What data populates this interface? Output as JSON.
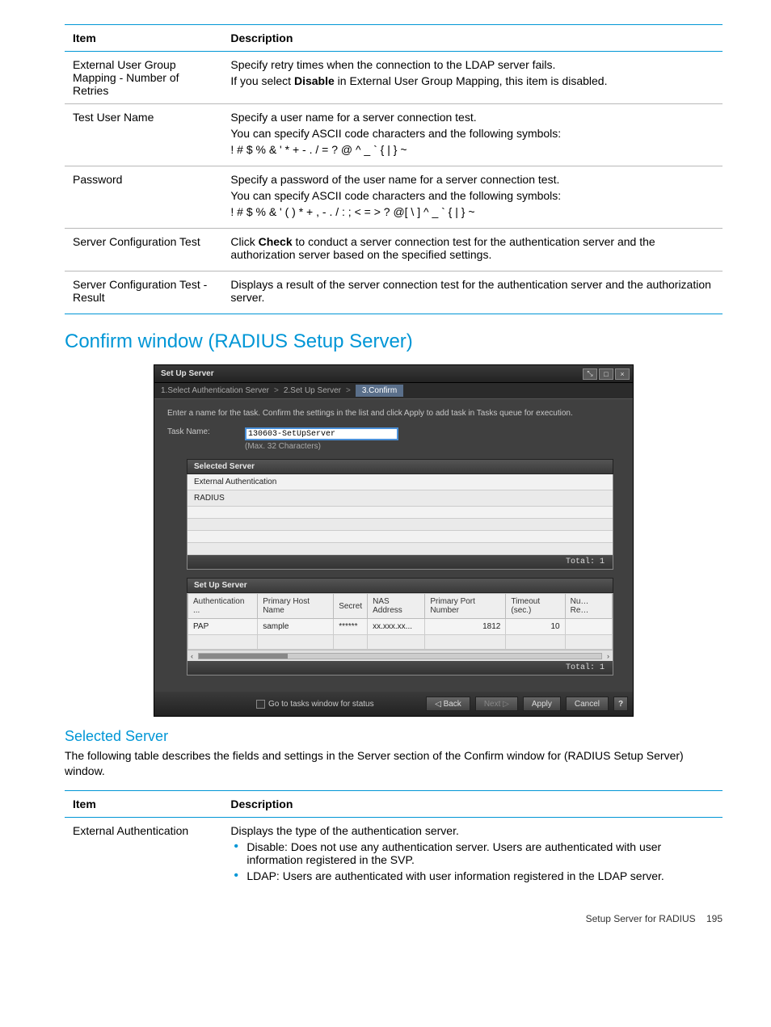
{
  "colors": {
    "accent": "#0096d6",
    "rule": "#b8b8b8",
    "dialog_bg": "#404040",
    "dialog_title_bg_top": "#3a3a3a",
    "dialog_title_bg_bottom": "#222222",
    "input_focus": "#4a90d9"
  },
  "table1": {
    "head_item": "Item",
    "head_desc": "Description",
    "rows": [
      {
        "item": "External User Group Mapping - Number of Retries",
        "desc_lines": [
          "Specify retry times when the connection to the LDAP server fails.",
          "If you select Disable in External User Group Mapping, this item is disabled."
        ],
        "bold_inline_word": "Disable"
      },
      {
        "item": "Test User Name",
        "desc_lines": [
          "Specify a user name for a server connection test.",
          "You can specify ASCII code characters and the following symbols:",
          "! # $ % & ' * + - . / = ? @ ^ _ ` { | } ~"
        ]
      },
      {
        "item": "Password",
        "desc_lines": [
          "Specify a password of the user name for a server connection test.",
          "You can specify ASCII code characters and the following symbols:",
          "! # $ % & ' ( ) * + , - . / : ; < = > ? @[ \\ ] ^ _ ` { | } ~"
        ]
      },
      {
        "item": "Server Configuration Test",
        "desc_lines": [
          "Click Check to conduct a server connection test for the authentication server and the authorization server based on the specified settings."
        ],
        "bold_inline_word": "Check"
      },
      {
        "item": "Server Configuration Test - Result",
        "desc_lines": [
          "Displays a result of the server connection test for the authentication server and the authorization server."
        ]
      }
    ]
  },
  "section_title": "Confirm window (RADIUS Setup Server)",
  "dialog": {
    "title": "Set Up Server",
    "steps": [
      "1.Select Authentication Server",
      "2.Set Up Server",
      "3.Confirm"
    ],
    "active_step_index": 2,
    "instruction": "Enter a name for the task. Confirm the settings in the list and click Apply to add task in Tasks queue for execution.",
    "task_label": "Task Name:",
    "task_value": "130603-SetUpServer",
    "task_hint": "(Max. 32 Characters)",
    "selected_server": {
      "header": "Selected Server",
      "rows": [
        "External Authentication",
        "RADIUS"
      ],
      "total_label": "Total: 1"
    },
    "setup": {
      "header": "Set Up Server",
      "columns": [
        "Authentication ...",
        "Primary Host Name",
        "Secret",
        "NAS Address",
        "Primary Port Number",
        "Timeout (sec.)",
        "Nu… Re…"
      ],
      "row": {
        "auth": "PAP",
        "host": "sample",
        "secret": "******",
        "nas": "xx.xxx.xx...",
        "port": "1812",
        "timeout": "10",
        "tail": ""
      },
      "total_label": "Total: 1"
    },
    "footer": {
      "checkbox_label": "Go to tasks window for status",
      "back": "◁ Back",
      "next": "Next ▷",
      "apply": "Apply",
      "cancel": "Cancel",
      "help": "?"
    }
  },
  "sub_title": "Selected Server",
  "body_para": "The following table describes the fields and settings in the Server section of the Confirm window for (RADIUS Setup Server) window.",
  "table2": {
    "head_item": "Item",
    "head_desc": "Description",
    "row_item": "External Authentication",
    "row_intro": "Displays the type of the authentication server.",
    "bullets": [
      "Disable: Does not use any authentication server. Users are authenticated with user information registered in the SVP.",
      "LDAP: Users are authenticated with user information registered in the LDAP server."
    ]
  },
  "page_footer": {
    "text": "Setup Server for RADIUS",
    "page": "195"
  }
}
